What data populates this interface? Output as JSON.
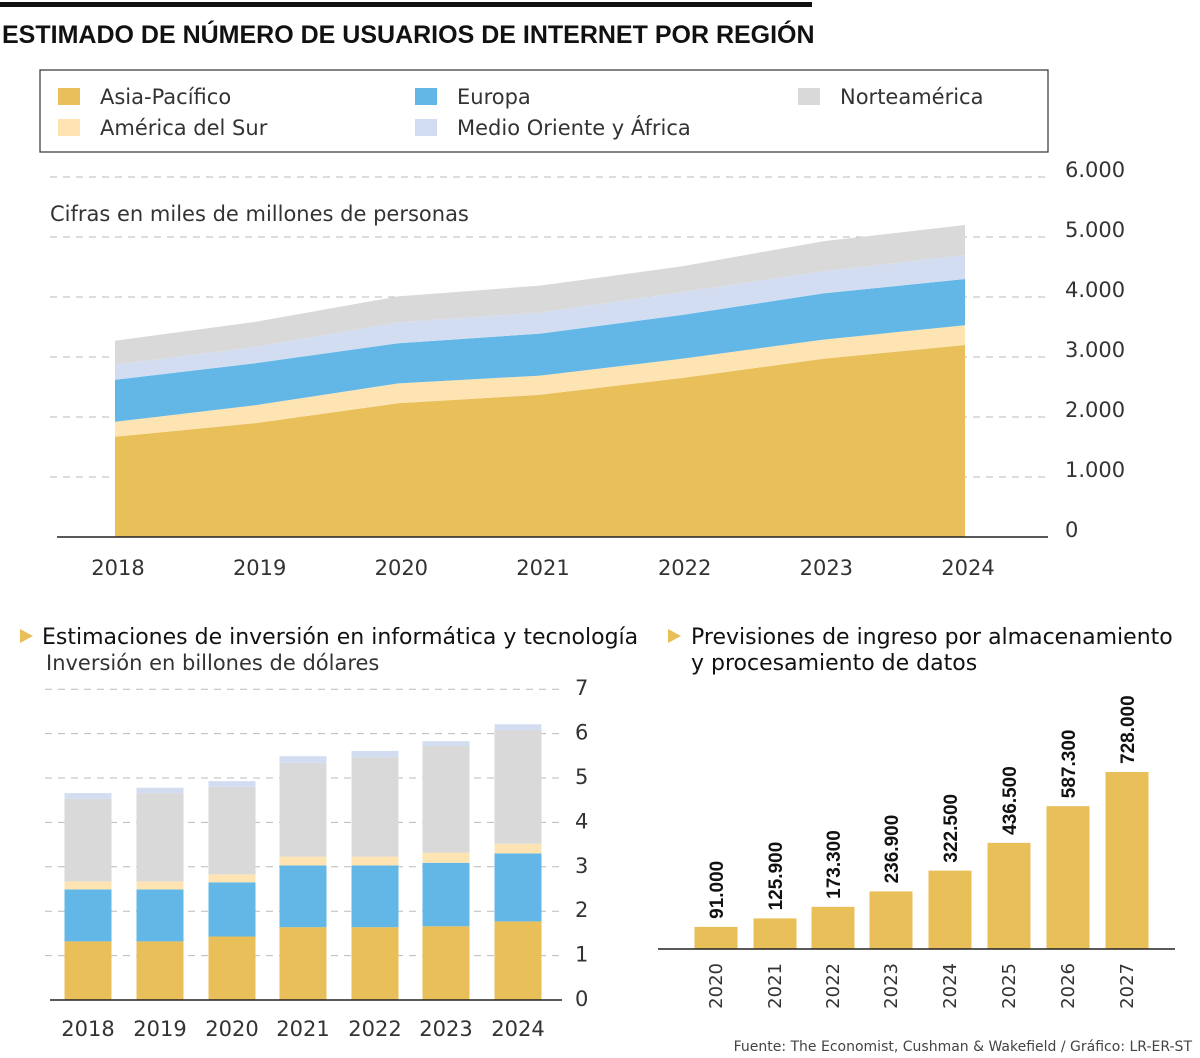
{
  "title": "ESTIMADO DE NÚMERO DE USUARIOS DE INTERNET POR REGIÓN",
  "legend": [
    {
      "label": "Asia-Pacífico",
      "color": "#E8BF58"
    },
    {
      "label": "América del Sur",
      "color": "#FDE4B2"
    },
    {
      "label": "Europa",
      "color": "#62B7E7"
    },
    {
      "label": "Medio Oriente y África",
      "color": "#D3DDF2"
    },
    {
      "label": "Norteamérica",
      "color": "#D9D9D9"
    }
  ],
  "source": "Fuente: The Economist, Cushman & Wakefield / Gráfico: LR-ER-ST",
  "chart_data": [
    {
      "type": "area",
      "stacked": true,
      "subtitle": "Cifras en miles de millones de personas",
      "categories": [
        "2018",
        "2019",
        "2020",
        "2021",
        "2022",
        "2023",
        "2024"
      ],
      "ylim": [
        0,
        6000
      ],
      "yticks": [
        "0",
        "1.000",
        "2.000",
        "3.000",
        "4.000",
        "5.000",
        "6.000"
      ],
      "grid": true,
      "legend_position": "top",
      "series": [
        {
          "name": "Asia-Pacífico",
          "values": [
            1670,
            1900,
            2230,
            2370,
            2650,
            2970,
            3200
          ]
        },
        {
          "name": "América del Sur",
          "values": [
            250,
            300,
            330,
            320,
            320,
            320,
            330
          ]
        },
        {
          "name": "Europa",
          "values": [
            700,
            700,
            670,
            700,
            730,
            770,
            770
          ]
        },
        {
          "name": "Medio Oriente y África",
          "values": [
            250,
            270,
            350,
            350,
            380,
            370,
            400
          ]
        },
        {
          "name": "Norteamérica",
          "values": [
            400,
            420,
            430,
            450,
            430,
            500,
            500
          ]
        }
      ]
    },
    {
      "type": "bar",
      "stacked": true,
      "title": "Estimaciones de inversión en informática y tecnología",
      "subtitle": "Inversión en billones de dólares",
      "categories": [
        "2018",
        "2019",
        "2020",
        "2021",
        "2022",
        "2023",
        "2024"
      ],
      "ylim": [
        0,
        7
      ],
      "yticks": [
        "0",
        "1",
        "2",
        "3",
        "4",
        "5",
        "6",
        "7"
      ],
      "grid": true,
      "series": [
        {
          "name": "Asia-Pacífico",
          "values": [
            1.32,
            1.32,
            1.43,
            1.64,
            1.64,
            1.66,
            1.77
          ]
        },
        {
          "name": "Europa",
          "values": [
            1.17,
            1.17,
            1.22,
            1.39,
            1.39,
            1.43,
            1.53
          ]
        },
        {
          "name": "América del Sur",
          "values": [
            0.18,
            0.18,
            0.18,
            0.2,
            0.2,
            0.23,
            0.22
          ]
        },
        {
          "name": "Norteamérica",
          "values": [
            1.86,
            1.99,
            1.97,
            2.11,
            2.24,
            2.4,
            2.56
          ]
        },
        {
          "name": "Medio Oriente y África",
          "values": [
            0.13,
            0.12,
            0.13,
            0.15,
            0.14,
            0.11,
            0.13
          ]
        }
      ]
    },
    {
      "type": "bar",
      "title_lines": [
        "Previsiones de ingreso por almacenamiento",
        "y procesamiento de datos"
      ],
      "categories": [
        "2020",
        "2021",
        "2022",
        "2023",
        "2024",
        "2025",
        "2026",
        "2027"
      ],
      "values": [
        91000,
        125900,
        173300,
        236900,
        322500,
        436500,
        587300,
        728000
      ],
      "labels": [
        "91.000",
        "125.900",
        "173.300",
        "236.900",
        "322.500",
        "436.500",
        "587.300",
        "728.000"
      ],
      "color": "#E8BF58"
    }
  ]
}
